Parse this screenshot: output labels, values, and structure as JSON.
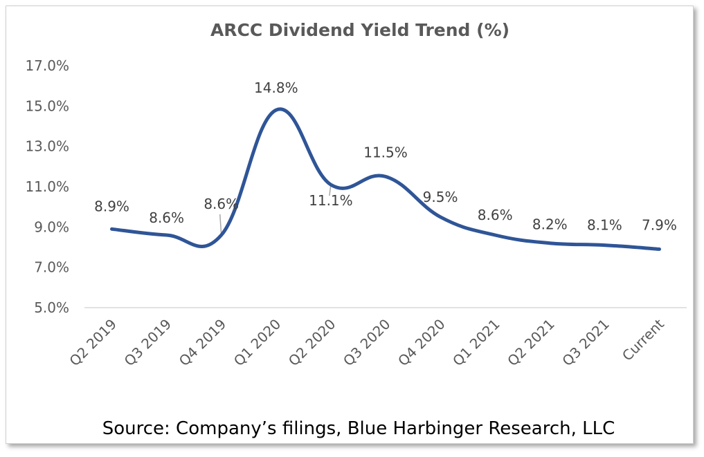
{
  "chart_data": {
    "type": "line",
    "title": "ARCC Dividend Yield Trend (%)",
    "categories": [
      "Q2 2019",
      "Q3 2019",
      "Q4 2019",
      "Q1 2020",
      "Q2 2020",
      "Q3 2020",
      "Q4 2020",
      "Q1 2021",
      "Q2 2021",
      "Q3 2021",
      "Current"
    ],
    "series": [
      {
        "name": "",
        "values": [
          8.9,
          8.6,
          8.6,
          14.8,
          11.1,
          11.5,
          9.5,
          8.6,
          8.2,
          8.1,
          7.9
        ],
        "data_labels": [
          "8.9%",
          "8.6%",
          "8.6%",
          "14.8%",
          "11.1%",
          "11.5%",
          "9.5%",
          "8.6%",
          "8.2%",
          "8.1%",
          "7.9%"
        ]
      }
    ],
    "y_ticks": [
      "5.0%",
      "7.0%",
      "9.0%",
      "11.0%",
      "13.0%",
      "15.0%",
      "17.0%"
    ],
    "ylim": [
      5,
      17
    ],
    "xlabel": "",
    "ylabel": "",
    "grid": false,
    "legend": "none",
    "smooth": true,
    "line_color": "#2f5597"
  },
  "source": "Source: Company’s filings, Blue Harbinger Research, LLC"
}
